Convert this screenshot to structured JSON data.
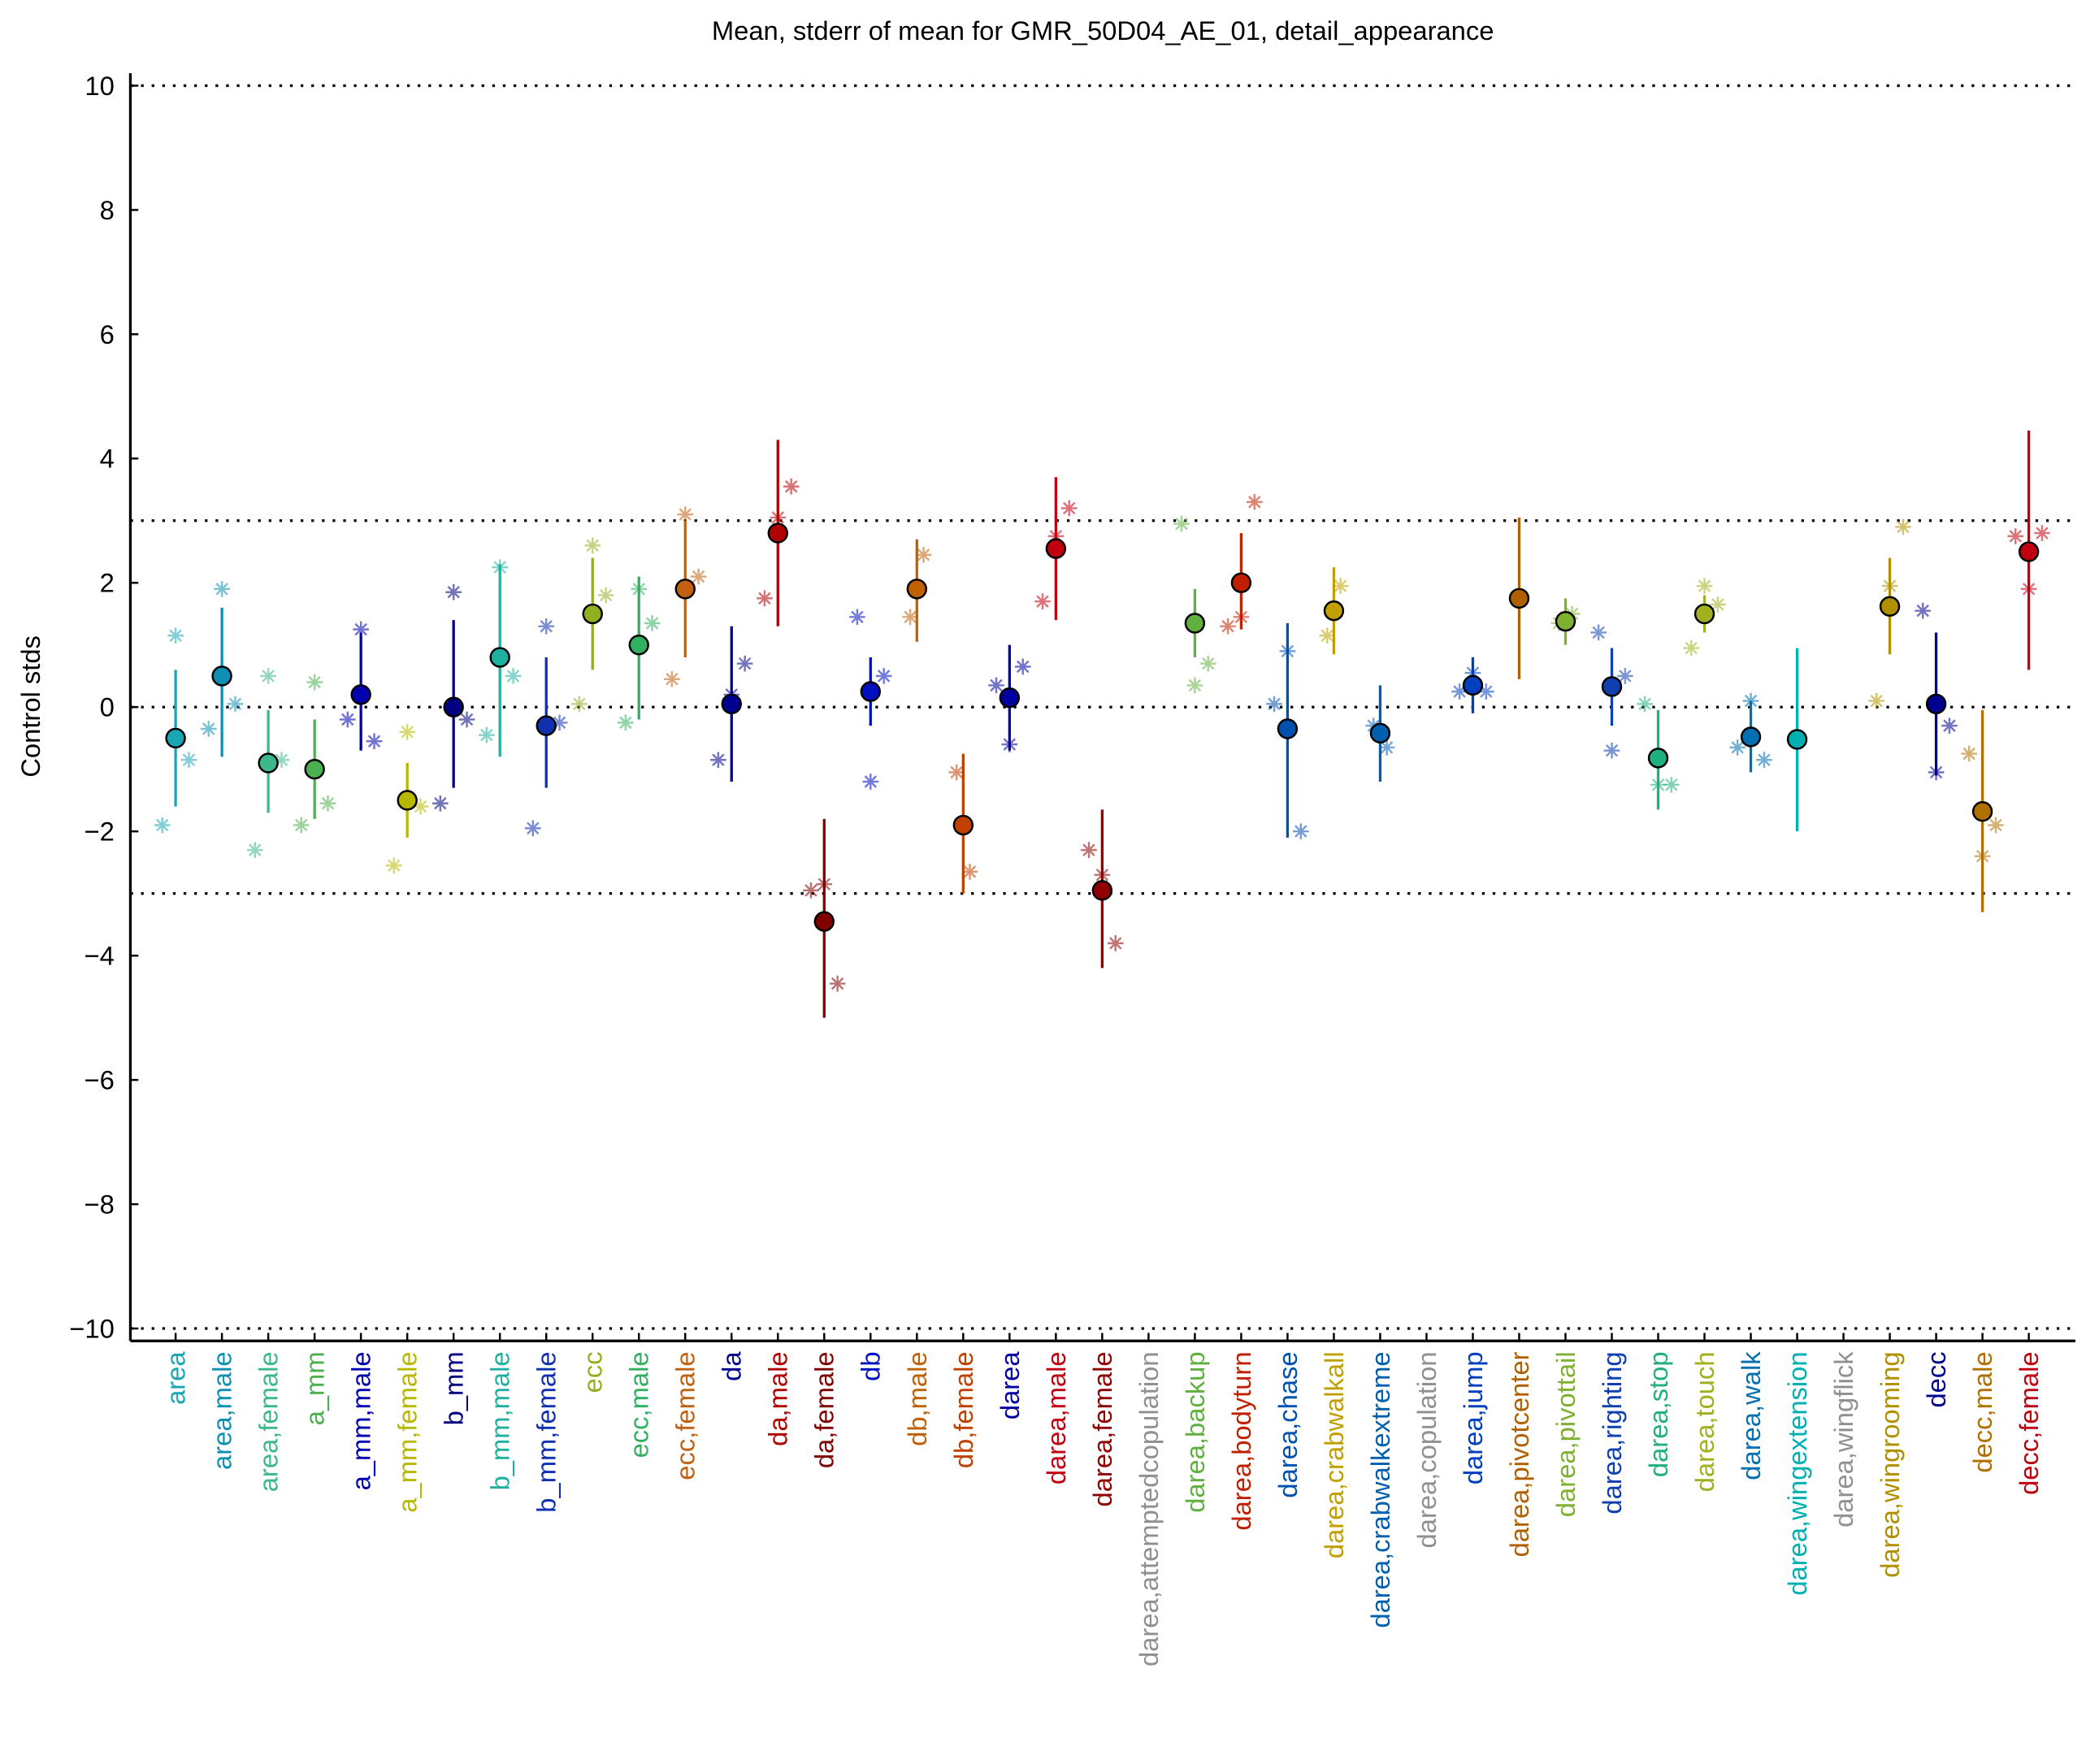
{
  "chart_data": {
    "type": "errorbar",
    "title": "Mean, stderr of mean for GMR_50D04_AE_01, detail_appearance",
    "ylabel": "Control stds",
    "ylim": [
      -10.2,
      10.2
    ],
    "yticks": [
      {
        "value": -10,
        "label": "−10"
      },
      {
        "value": -8,
        "label": "−8"
      },
      {
        "value": -6,
        "label": "−6"
      },
      {
        "value": -4,
        "label": "−4"
      },
      {
        "value": -2,
        "label": "−2"
      },
      0,
      2,
      4,
      6,
      8,
      10
    ],
    "hlines": [
      10,
      3,
      0,
      -3,
      -10
    ],
    "categories": [
      "area",
      "area,male",
      "area,female",
      "a_mm",
      "a_mm,male",
      "a_mm,female",
      "b_mm",
      "b_mm,male",
      "b_mm,female",
      "ecc",
      "ecc,male",
      "ecc,female",
      "da",
      "da,male",
      "da,female",
      "db",
      "db,male",
      "db,female",
      "darea",
      "darea,male",
      "darea,female",
      "darea,attemptedcopulation",
      "darea,backup",
      "darea,bodyturn",
      "darea,chase",
      "darea,crabwalkall",
      "darea,crabwalkextreme",
      "darea,copulation",
      "darea,jump",
      "darea,pivotcenter",
      "darea,pivottail",
      "darea,righting",
      "darea,stop",
      "darea,touch",
      "darea,walk",
      "darea,wingextension",
      "darea,wingflick",
      "darea,wingrooming",
      "decc",
      "decc,male",
      "decc,female"
    ],
    "colors": [
      "#1aa5b5",
      "#0f8fb3",
      "#3cb88a",
      "#4caf50",
      "#0000b0",
      "#b8b800",
      "#000080",
      "#20b0a0",
      "#1030b0",
      "#90b020",
      "#30b060",
      "#c06010",
      "#000090",
      "#b00000",
      "#800000",
      "#0010c0",
      "#c06000",
      "#c04000",
      "#0000a0",
      "#c00010",
      "#900000",
      "#909090",
      "#60b040",
      "#c02000",
      "#0050b0",
      "#c0a000",
      "#0060b0",
      "#909090",
      "#0040c0",
      "#b06000",
      "#80b030",
      "#1040b0",
      "#20b080",
      "#a0b020",
      "#0070b0",
      "#00b0b0",
      "#909090",
      "#b09000",
      "#000090",
      "#b07000",
      "#c00010"
    ],
    "values": [
      -0.5,
      0.5,
      -0.9,
      -1.0,
      0.2,
      -1.5,
      0.0,
      0.8,
      -0.3,
      1.5,
      1.0,
      1.9,
      0.05,
      2.8,
      -3.45,
      0.25,
      1.9,
      -1.9,
      0.15,
      2.55,
      -2.95,
      null,
      1.35,
      2.0,
      -0.35,
      1.55,
      -0.42,
      null,
      0.35,
      1.75,
      1.38,
      0.33,
      -0.82,
      1.5,
      -0.48,
      -0.52,
      null,
      1.62,
      0.05,
      -1.68,
      2.5
    ],
    "lower": [
      -1.6,
      -0.8,
      -1.7,
      -1.8,
      -0.7,
      -2.1,
      -1.3,
      -0.8,
      -1.3,
      0.6,
      -0.2,
      0.8,
      -1.2,
      1.3,
      -5.0,
      -0.3,
      1.05,
      -3.0,
      -0.7,
      1.4,
      -4.2,
      null,
      0.8,
      1.25,
      -2.1,
      0.85,
      -1.2,
      null,
      -0.1,
      0.45,
      1.0,
      -0.3,
      -1.65,
      1.2,
      -1.05,
      -2.0,
      null,
      0.85,
      -1.1,
      -3.3,
      0.6
    ],
    "upper": [
      0.6,
      1.6,
      -0.05,
      -0.2,
      1.2,
      -0.9,
      1.4,
      2.3,
      0.8,
      2.4,
      2.1,
      3.0,
      1.3,
      4.3,
      -1.8,
      0.8,
      2.7,
      -0.75,
      1.0,
      3.7,
      -1.65,
      null,
      1.9,
      2.8,
      1.35,
      2.25,
      0.35,
      null,
      0.8,
      3.05,
      1.75,
      0.95,
      -0.05,
      1.8,
      0.1,
      0.95,
      null,
      2.4,
      1.2,
      -0.05,
      4.45
    ],
    "stars": [
      [
        -1.9,
        1.15,
        -0.85
      ],
      [
        -0.35,
        1.9,
        0.05
      ],
      [
        -2.3,
        0.5,
        -0.85
      ],
      [
        -1.9,
        0.4,
        -1.55
      ],
      [
        -0.2,
        1.25,
        -0.55
      ],
      [
        -2.55,
        -0.4,
        -1.6
      ],
      [
        -1.55,
        1.85,
        -0.2
      ],
      [
        -0.45,
        2.25,
        0.5
      ],
      [
        -1.95,
        1.3,
        -0.25
      ],
      [
        0.05,
        2.6,
        1.8
      ],
      [
        -0.25,
        1.9,
        1.35
      ],
      [
        0.45,
        3.1,
        2.1
      ],
      [
        -0.85,
        0.2,
        0.7
      ],
      [
        1.75,
        3.05,
        3.55
      ],
      [
        -2.95,
        -2.85,
        -4.45
      ],
      [
        1.45,
        -1.2,
        0.5
      ],
      [
        1.45,
        2.45
      ],
      [
        -1.05,
        -2.65
      ],
      [
        0.35,
        -0.6,
        0.65
      ],
      [
        1.7,
        2.75,
        3.2
      ],
      [
        -2.3,
        -2.7,
        -3.8
      ],
      [],
      [
        2.95,
        0.35,
        0.7
      ],
      [
        1.3,
        1.45,
        3.3
      ],
      [
        0.05,
        0.9,
        -2.0
      ],
      [
        1.15,
        1.95
      ],
      [
        -0.3,
        -0.65
      ],
      [],
      [
        0.25,
        0.55,
        0.25
      ],
      [],
      [
        1.35,
        1.5
      ],
      [
        1.2,
        -0.7,
        0.5
      ],
      [
        0.05,
        -1.25,
        -1.25
      ],
      [
        0.95,
        1.95,
        1.65
      ],
      [
        -0.65,
        0.1,
        -0.85
      ],
      [],
      [],
      [
        0.1,
        1.95,
        2.9
      ],
      [
        1.55,
        -1.05,
        -0.3
      ],
      [
        -0.75,
        -2.4,
        -1.9
      ],
      [
        2.75,
        1.9,
        2.8
      ]
    ]
  }
}
